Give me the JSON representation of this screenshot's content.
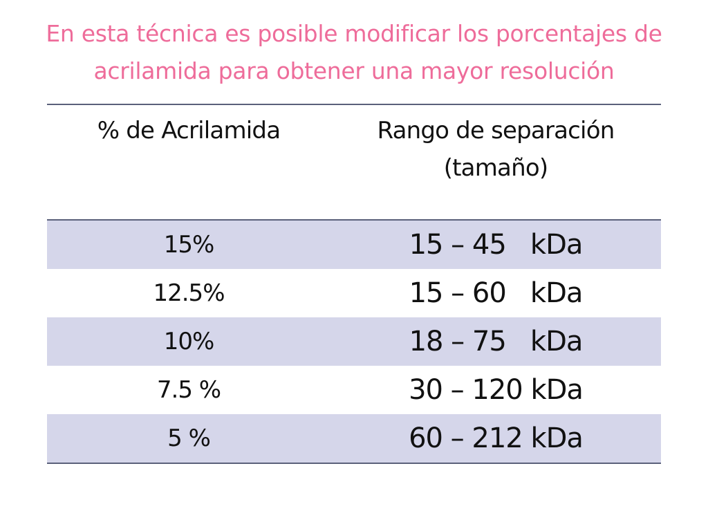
{
  "slide": {
    "title_line1": "En esta técnica es posible modificar los porcentajes de",
    "title_line2": "acrilamida para obtener una mayor resolución",
    "title_color": "#ee6c9a"
  },
  "table": {
    "headers": [
      "% de Acrilamida",
      "Rango de separación",
      "(tamaño)"
    ],
    "rows": [
      {
        "percent": "15%",
        "range": "15 – 45   kDa"
      },
      {
        "percent": "12.5%",
        "range": "15 – 60   kDa"
      },
      {
        "percent": "10%",
        "range": "18 – 75   kDa"
      },
      {
        "percent": "7.5 %",
        "range": "30 – 120 kDa"
      },
      {
        "percent": "5 %",
        "range": "60 – 212 kDa"
      }
    ],
    "shaded_row_color": "#d5d6ea",
    "border_color": "#5a607a"
  }
}
